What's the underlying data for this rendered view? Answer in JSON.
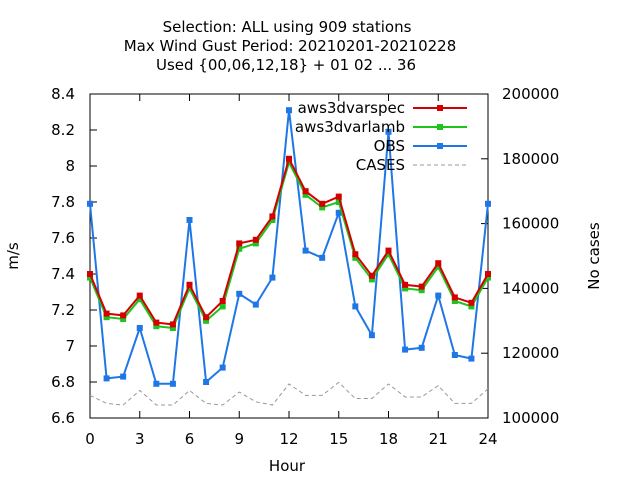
{
  "chart_data": {
    "type": "line",
    "title_lines": [
      "Selection: ALL using   909 stations",
      "Max Wind Gust   Period: 20210201-20210228",
      "Used {00,06,12,18} + 01 02 ... 36"
    ],
    "xlabel": "Hour",
    "ylabel": "m/s",
    "y2label": "No cases",
    "xlim": [
      0,
      24
    ],
    "ylim": [
      6.6,
      8.4
    ],
    "y2lim": [
      100000,
      200000
    ],
    "x_ticks": [
      "0",
      "3",
      "6",
      "9",
      "12",
      "15",
      "18",
      "21",
      "24"
    ],
    "y_ticks": [
      "6.6",
      "6.8",
      "7",
      "7.2",
      "7.4",
      "7.6",
      "7.8",
      "8",
      "8.2",
      "8.4"
    ],
    "y2_ticks": [
      "100000",
      "120000",
      "140000",
      "160000",
      "180000",
      "200000"
    ],
    "grid": false,
    "legend_position": "top-right",
    "x": [
      0,
      1,
      2,
      3,
      4,
      5,
      6,
      7,
      8,
      9,
      10,
      11,
      12,
      13,
      14,
      15,
      16,
      17,
      18,
      19,
      20,
      21,
      22,
      23,
      24
    ],
    "series": [
      {
        "name": "aws3dvarspec",
        "color": "#d40000",
        "marker": "square",
        "axis": "y",
        "values": [
          7.4,
          7.18,
          7.17,
          7.28,
          7.13,
          7.12,
          7.34,
          7.16,
          7.25,
          7.57,
          7.59,
          7.72,
          8.04,
          7.86,
          7.79,
          7.83,
          7.51,
          7.39,
          7.53,
          7.34,
          7.33,
          7.46,
          7.27,
          7.24,
          7.4
        ]
      },
      {
        "name": "aws3dvarlamb",
        "color": "#1ec31e",
        "marker": "square",
        "axis": "y",
        "values": [
          7.38,
          7.16,
          7.15,
          7.26,
          7.11,
          7.1,
          7.32,
          7.14,
          7.22,
          7.54,
          7.57,
          7.7,
          8.02,
          7.84,
          7.77,
          7.8,
          7.49,
          7.37,
          7.51,
          7.32,
          7.31,
          7.44,
          7.25,
          7.22,
          7.38
        ]
      },
      {
        "name": "OBS",
        "color": "#1f77e6",
        "marker": "square",
        "axis": "y",
        "values": [
          7.79,
          6.82,
          6.83,
          7.1,
          6.79,
          6.79,
          7.7,
          6.8,
          6.88,
          7.29,
          7.23,
          7.38,
          8.31,
          7.53,
          7.49,
          7.74,
          7.22,
          7.06,
          8.19,
          6.98,
          6.99,
          7.28,
          6.95,
          6.93,
          7.79
        ]
      },
      {
        "name": "CASES",
        "color": "#999999",
        "marker": "none",
        "dashed": true,
        "axis": "y2",
        "values": [
          107000,
          104500,
          104000,
          108500,
          104000,
          104000,
          108500,
          104500,
          104000,
          108000,
          105000,
          104000,
          110500,
          107000,
          107000,
          111000,
          106000,
          106000,
          110500,
          106500,
          106500,
          110000,
          104500,
          104500,
          109000
        ]
      }
    ]
  }
}
